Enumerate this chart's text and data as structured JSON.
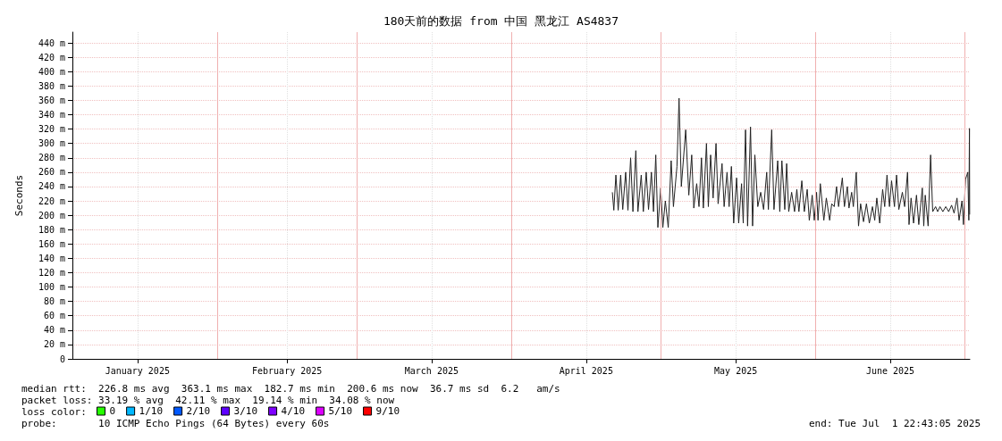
{
  "chart_data": {
    "type": "line",
    "title": "180天前的数据 from 中国 黑龙江 AS4837",
    "ylabel": "Seconds",
    "legend_title": "loss color:",
    "legend": "bottom left",
    "grid": true,
    "xlim": [
      "2025-01-02T22:43",
      "2025-07-01T22:43"
    ],
    "xticks": [
      {
        "value": "2025-01-16",
        "label": "January 2025"
      },
      {
        "value": "2025-02-15",
        "label": "February 2025"
      },
      {
        "value": "2025-03-16",
        "label": "March 2025"
      },
      {
        "value": "2025-04-16",
        "label": "April 2025"
      },
      {
        "value": "2025-05-16",
        "label": "May 2025"
      },
      {
        "value": "2025-06-16",
        "label": "June 2025"
      }
    ],
    "ylim": [
      0,
      455
    ],
    "yticks": [
      0,
      {
        "value": 20,
        "label": "20 m"
      },
      {
        "value": 40,
        "label": "40 m"
      },
      {
        "value": 60,
        "label": "60 m"
      },
      {
        "value": 80,
        "label": "80 m"
      },
      {
        "value": 100,
        "label": "100 m"
      },
      {
        "value": 120,
        "label": "120 m"
      },
      {
        "value": 140,
        "label": "140 m"
      },
      {
        "value": 160,
        "label": "160 m"
      },
      {
        "value": 180,
        "label": "180 m"
      },
      {
        "value": 200,
        "label": "200 m"
      },
      {
        "value": 220,
        "label": "220 m"
      },
      {
        "value": 240,
        "label": "240 m"
      },
      {
        "value": 260,
        "label": "260 m"
      },
      {
        "value": 280,
        "label": "280 m"
      },
      {
        "value": 300,
        "label": "300 m"
      },
      {
        "value": 320,
        "label": "320 m"
      },
      {
        "value": 340,
        "label": "340 m"
      },
      {
        "value": 360,
        "label": "360 m"
      },
      {
        "value": 380,
        "label": "380 m"
      },
      {
        "value": 400,
        "label": "400 m"
      },
      {
        "value": 420,
        "label": "420 m"
      },
      {
        "value": 440,
        "label": "440 m"
      }
    ],
    "ref_lines": [
      {
        "axis": "x",
        "value": "2025-02-01",
        "color": "#f0b0b0"
      },
      {
        "axis": "x",
        "value": "2025-03-01",
        "color": "#f0b0b0"
      },
      {
        "axis": "x",
        "value": "2025-04-01",
        "color": "#f0b0b0"
      },
      {
        "axis": "x",
        "value": "2025-05-01",
        "color": "#f0b0b0"
      },
      {
        "axis": "x",
        "value": "2025-06-01",
        "color": "#f0b0b0"
      },
      {
        "axis": "x",
        "value": "2025-07-01",
        "color": "#f0b0b0"
      }
    ],
    "annotations": [
      "median rtt:  226.8 ms avg  363.1 ms max  182.7 ms min  200.6 ms now  36.7 ms sd  6.2   am/s",
      "packet loss: 33.19 % avg  42.11 % max  19.14 % min  34.08 % now",
      "probe:       10 ICMP Echo Pings (64 Bytes) every 60s",
      "end: Tue Jul  1 22:43:05 2025"
    ],
    "series": [
      {
        "color": "#222222",
        "x": [
          "2025-04-21T06:00",
          "2025-04-21T13:00",
          "2025-04-21T23:00",
          "2025-04-22T10:00",
          "2025-04-22T22:00",
          "2025-04-23T08:00",
          "2025-04-23T22:00",
          "2025-04-24T09:00",
          "2025-04-24T22:00",
          "2025-04-25T09:00",
          "2025-04-25T23:00",
          "2025-04-26T09:00",
          "2025-04-27T01:00",
          "2025-04-27T11:00",
          "2025-04-28T01:00",
          "2025-04-28T12:00",
          "2025-04-29T02:00",
          "2025-04-29T12:00",
          "2025-04-29T23:00",
          "2025-04-30T09:00",
          "2025-04-30T23:00",
          "2025-05-01T09:00",
          "2025-05-01T21:00",
          "2025-05-02T11:00",
          "2025-05-03T01:00",
          "2025-05-03T12:00",
          "2025-05-04T05:00",
          "2025-05-04T15:00",
          "2025-05-05T02:00",
          "2025-05-05T23:00",
          "2025-05-06T14:00",
          "2025-05-07T04:00",
          "2025-05-07T14:00",
          "2025-05-08T04:00",
          "2025-05-08T15:00",
          "2025-05-09T03:00",
          "2025-05-09T12:00",
          "2025-05-10T03:00",
          "2025-05-10T12:00",
          "2025-05-10T23:00",
          "2025-05-11T11:00",
          "2025-05-12T01:00",
          "2025-05-12T11:00",
          "2025-05-13T06:00",
          "2025-05-13T16:00",
          "2025-05-14T06:00",
          "2025-05-14T16:00",
          "2025-05-15T03:00",
          "2025-05-15T14:00",
          "2025-05-16T04:00",
          "2025-05-16T14:00",
          "2025-05-17T04:00",
          "2025-05-17T12:00",
          "2025-05-17T23:00",
          "2025-05-18T09:00",
          "2025-05-18T23:00",
          "2025-05-19T09:00",
          "2025-05-19T20:00",
          "2025-05-20T10:00",
          "2025-05-21T00:00",
          "2025-05-21T14:00",
          "2025-05-22T05:00",
          "2025-05-22T13:00",
          "2025-05-23T05:00",
          "2025-05-23T16:00",
          "2025-05-24T10:00",
          "2025-05-24T20:00",
          "2025-05-25T06:00",
          "2025-05-25T20:00",
          "2025-05-26T05:00",
          "2025-05-26T15:00",
          "2025-05-27T05:00",
          "2025-05-27T19:00",
          "2025-05-28T06:00",
          "2025-05-28T16:00",
          "2025-05-29T06:00",
          "2025-05-29T18:00",
          "2025-05-30T08:00",
          "2025-05-30T18:00",
          "2025-05-31T08:00",
          "2025-05-31T18:00",
          "2025-06-01T05:00",
          "2025-06-01T12:00",
          "2025-06-01T23:00",
          "2025-06-02T16:00",
          "2025-06-03T04:00",
          "2025-06-03T20:00",
          "2025-06-04T06:00",
          "2025-06-04T18:00",
          "2025-06-05T05:00",
          "2025-06-05T15:00",
          "2025-06-06T09:00",
          "2025-06-06T19:00",
          "2025-06-07T09:00",
          "2025-06-07T17:00",
          "2025-06-08T06:00",
          "2025-06-08T14:00",
          "2025-06-09T04:00",
          "2025-06-09T15:00",
          "2025-06-10T01:00",
          "2025-06-10T15:00",
          "2025-06-11T05:00",
          "2025-06-11T19:00",
          "2025-06-12T10:00",
          "2025-06-12T21:00",
          "2025-06-13T07:00",
          "2025-06-13T21:00",
          "2025-06-14T11:00",
          "2025-06-14T21:00",
          "2025-06-15T08:00",
          "2025-06-15T20:00",
          "2025-06-16T06:00",
          "2025-06-16T20:00",
          "2025-06-17T06:00",
          "2025-06-17T17:00",
          "2025-06-18T10:00",
          "2025-06-18T21:00",
          "2025-06-19T11:00",
          "2025-06-19T18:00",
          "2025-06-20T04:00",
          "2025-06-20T16:00",
          "2025-06-21T06:00",
          "2025-06-21T17:00",
          "2025-06-22T10:00",
          "2025-06-22T17:00",
          "2025-06-23T00:00",
          "2025-06-23T14:00",
          "2025-06-24T02:00",
          "2025-06-24T12:00",
          "2025-06-25T02:00",
          "2025-06-25T12:00",
          "2025-06-25T23:00",
          "2025-06-26T13:00",
          "2025-06-27T03:00",
          "2025-06-27T17:00",
          "2025-06-28T07:00",
          "2025-06-28T19:00",
          "2025-06-29T09:00",
          "2025-06-29T19:00",
          "2025-06-30T09:00",
          "2025-06-30T16:00",
          "2025-07-01T02:00",
          "2025-07-01T13:00",
          "2025-07-01T18:00",
          "2025-07-01T21:00",
          "2025-07-01T22:00"
        ],
        "values": [
          232,
          207,
          256,
          207,
          256,
          208,
          260,
          207,
          280,
          205,
          290,
          205,
          256,
          205,
          260,
          208,
          260,
          205,
          284,
          183,
          238,
          183,
          220,
          183,
          276,
          212,
          268,
          363,
          240,
          319,
          228,
          284,
          210,
          244,
          212,
          280,
          210,
          300,
          212,
          284,
          224,
          300,
          216,
          272,
          212,
          260,
          212,
          268,
          189,
          252,
          189,
          244,
          189,
          319,
          185,
          323,
          185,
          284,
          212,
          232,
          208,
          260,
          208,
          319,
          208,
          276,
          205,
          276,
          208,
          272,
          205,
          232,
          205,
          236,
          205,
          248,
          205,
          236,
          193,
          228,
          193,
          232,
          193,
          244,
          193,
          224,
          193,
          216,
          212,
          240,
          212,
          252,
          212,
          240,
          210,
          232,
          212,
          260,
          185,
          216,
          191,
          216,
          189,
          212,
          193,
          224,
          189,
          236,
          212,
          256,
          212,
          248,
          212,
          256,
          208,
          232,
          212,
          260,
          187,
          224,
          189,
          228,
          187,
          238,
          185,
          228,
          185,
          284,
          205,
          212,
          205,
          212,
          205,
          212,
          205,
          214,
          203,
          224,
          193,
          220,
          187,
          250,
          260,
          193,
          321,
          201
        ]
      },
      {
        "name": "0",
        "color": "#26ff00"
      },
      {
        "name": "1/10",
        "color": "#00b8ff"
      },
      {
        "name": "2/10",
        "color": "#0059ff"
      },
      {
        "name": "3/10",
        "color": "#5e00ff"
      },
      {
        "name": "4/10",
        "color": "#7e00ff"
      },
      {
        "name": "5/10",
        "color": "#dd00ff"
      },
      {
        "name": "9/10",
        "color": "#ff0000"
      }
    ]
  }
}
